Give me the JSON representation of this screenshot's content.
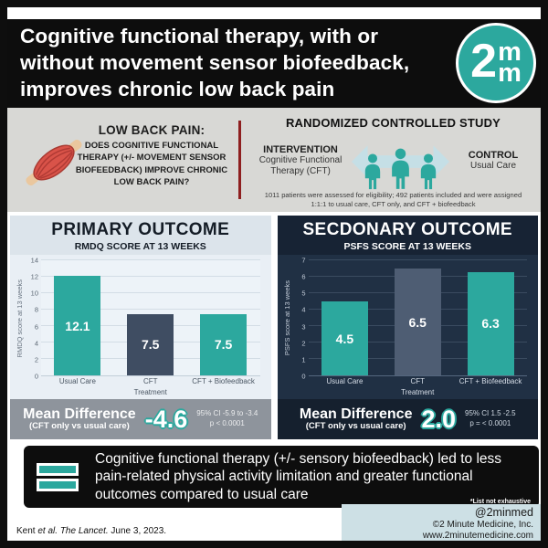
{
  "colors": {
    "teal": "#2ca89e",
    "slate": "#3f4d62",
    "slate_light": "#4e5d73",
    "navy_panel": "#203044",
    "navy_header": "#172334",
    "mean_bar_gray": "#8e949c",
    "arrow_blue": "#c5dfe6",
    "muscle_red": "#d95349"
  },
  "header": {
    "title": "Cognitive functional therapy, with or without movement sensor biofeedback, improves chronic low back pain",
    "logo": {
      "numeral": "2",
      "m_top": "m",
      "m_bottom": "m"
    }
  },
  "study": {
    "question_heading": "LOW BACK PAIN:",
    "question_text": "DOES COGNITIVE FUNCTIONAL THERAPY (+/- MOVEMENT SENSOR BIOFEEDBACK) IMPROVE CHRONIC LOW BACK PAIN?",
    "design_heading": "RANDOMIZED CONTROLLED STUDY",
    "intervention_label": "INTERVENTION",
    "intervention_desc": "Cognitive Functional Therapy (CFT)",
    "control_label": "CONTROL",
    "control_desc": "Usual Care",
    "enrollment_note": "1011 patients were assessed for eligibility; 492 patients included and were assigned 1:1:1 to usual care, CFT only, and CFT + biofeedback"
  },
  "chart_data": [
    {
      "type": "bar",
      "panel": "primary",
      "title": "PRIMARY OUTCOME",
      "subtitle": "RMDQ SCORE AT 13 WEEKS",
      "categories": [
        "Usual Care",
        "CFT",
        "CFT + Biofeedback"
      ],
      "values": [
        12.1,
        7.5,
        7.5
      ],
      "value_labels": [
        "12.1",
        "7.5",
        "7.5"
      ],
      "bar_colors": [
        "#2ca89e",
        "#3f4d62",
        "#2ca89e"
      ],
      "xlabel": "Treatment",
      "ylabel": "RMDQ score at 13 weeks",
      "ylim": [
        0,
        14
      ],
      "ytick_step": 2,
      "grid": true,
      "legend": "none",
      "mean_difference": {
        "label": "Mean Difference",
        "sublabel": "(CFT only vs usual care)",
        "value": "-4.6",
        "ci": "95% CI -5.9 to -3.4",
        "p": "p < 0.0001"
      }
    },
    {
      "type": "bar",
      "panel": "secondary",
      "title": "SECDONARY OUTCOME",
      "subtitle": "PSFS SCORE AT 13 WEEKS",
      "categories": [
        "Usual Care",
        "CFT",
        "CFT + Biofeedback"
      ],
      "values": [
        4.5,
        6.5,
        6.3
      ],
      "value_labels": [
        "4.5",
        "6.5",
        "6.3"
      ],
      "bar_colors": [
        "#2ca89e",
        "#4e5d73",
        "#2ca89e"
      ],
      "xlabel": "Treatment",
      "ylabel": "PSFS score at 13 weeks",
      "ylim": [
        0,
        7
      ],
      "ytick_step": 1,
      "grid": true,
      "legend": "none",
      "mean_difference": {
        "label": "Mean Difference",
        "sublabel": "(CFT only vs usual care)",
        "value": "2.0",
        "ci": "95% CI 1.5 -2.5",
        "p": "p = < 0.0001"
      }
    }
  ],
  "conclusion": {
    "text": "Cognitive functional therapy (+/- sensory biofeedback) led to less pain-related physical activity limitation and greater functional outcomes compared to usual care",
    "footnote": "*List not exhaustive"
  },
  "footer": {
    "citation_author": "Kent",
    "citation_etal": "et al.",
    "citation_journal": "The Lancet.",
    "citation_date": "June 3, 2023.",
    "social_handle": "@2minmed",
    "company": "©2 Minute Medicine, Inc.",
    "website": "www.2minutemedicine.com"
  }
}
